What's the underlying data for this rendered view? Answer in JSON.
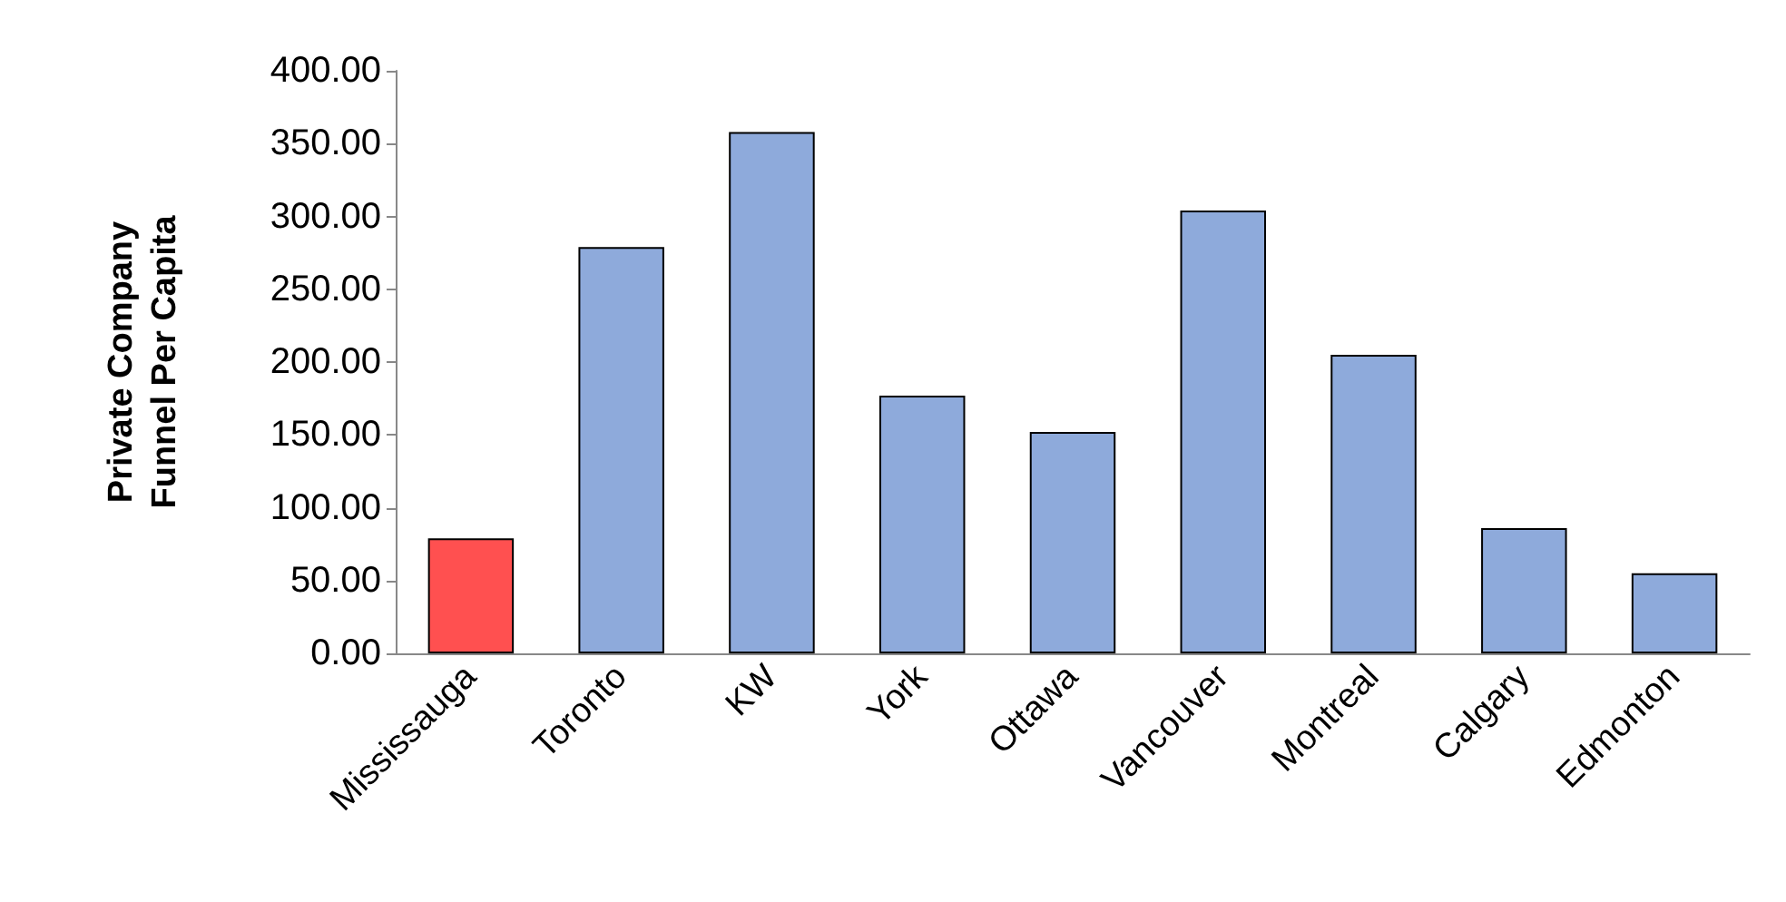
{
  "chart_data": {
    "type": "bar",
    "ylabel": "Private Company\nFunnel Per Capita",
    "categories": [
      "Mississauga",
      "Toronto",
      "KW",
      "York",
      "Ottawa",
      "Vancouver",
      "Montreal",
      "Calgary",
      "Edmonton"
    ],
    "values": [
      79,
      279,
      358,
      177,
      152,
      304,
      205,
      86,
      55
    ],
    "colors": [
      "#ff5050",
      "#8eaadb",
      "#8eaadb",
      "#8eaadb",
      "#8eaadb",
      "#8eaadb",
      "#8eaadb",
      "#8eaadb",
      "#8eaadb"
    ],
    "ylim": [
      0,
      400
    ],
    "yticks": [
      {
        "value": 0,
        "label": "0.00"
      },
      {
        "value": 50,
        "label": "50.00"
      },
      {
        "value": 100,
        "label": "100.00"
      },
      {
        "value": 150,
        "label": "150.00"
      },
      {
        "value": 200,
        "label": "200.00"
      },
      {
        "value": 250,
        "label": "250.00"
      },
      {
        "value": 300,
        "label": "300.00"
      },
      {
        "value": 350,
        "label": "350.00"
      },
      {
        "value": 400,
        "label": "400.00"
      }
    ],
    "grid": false
  }
}
